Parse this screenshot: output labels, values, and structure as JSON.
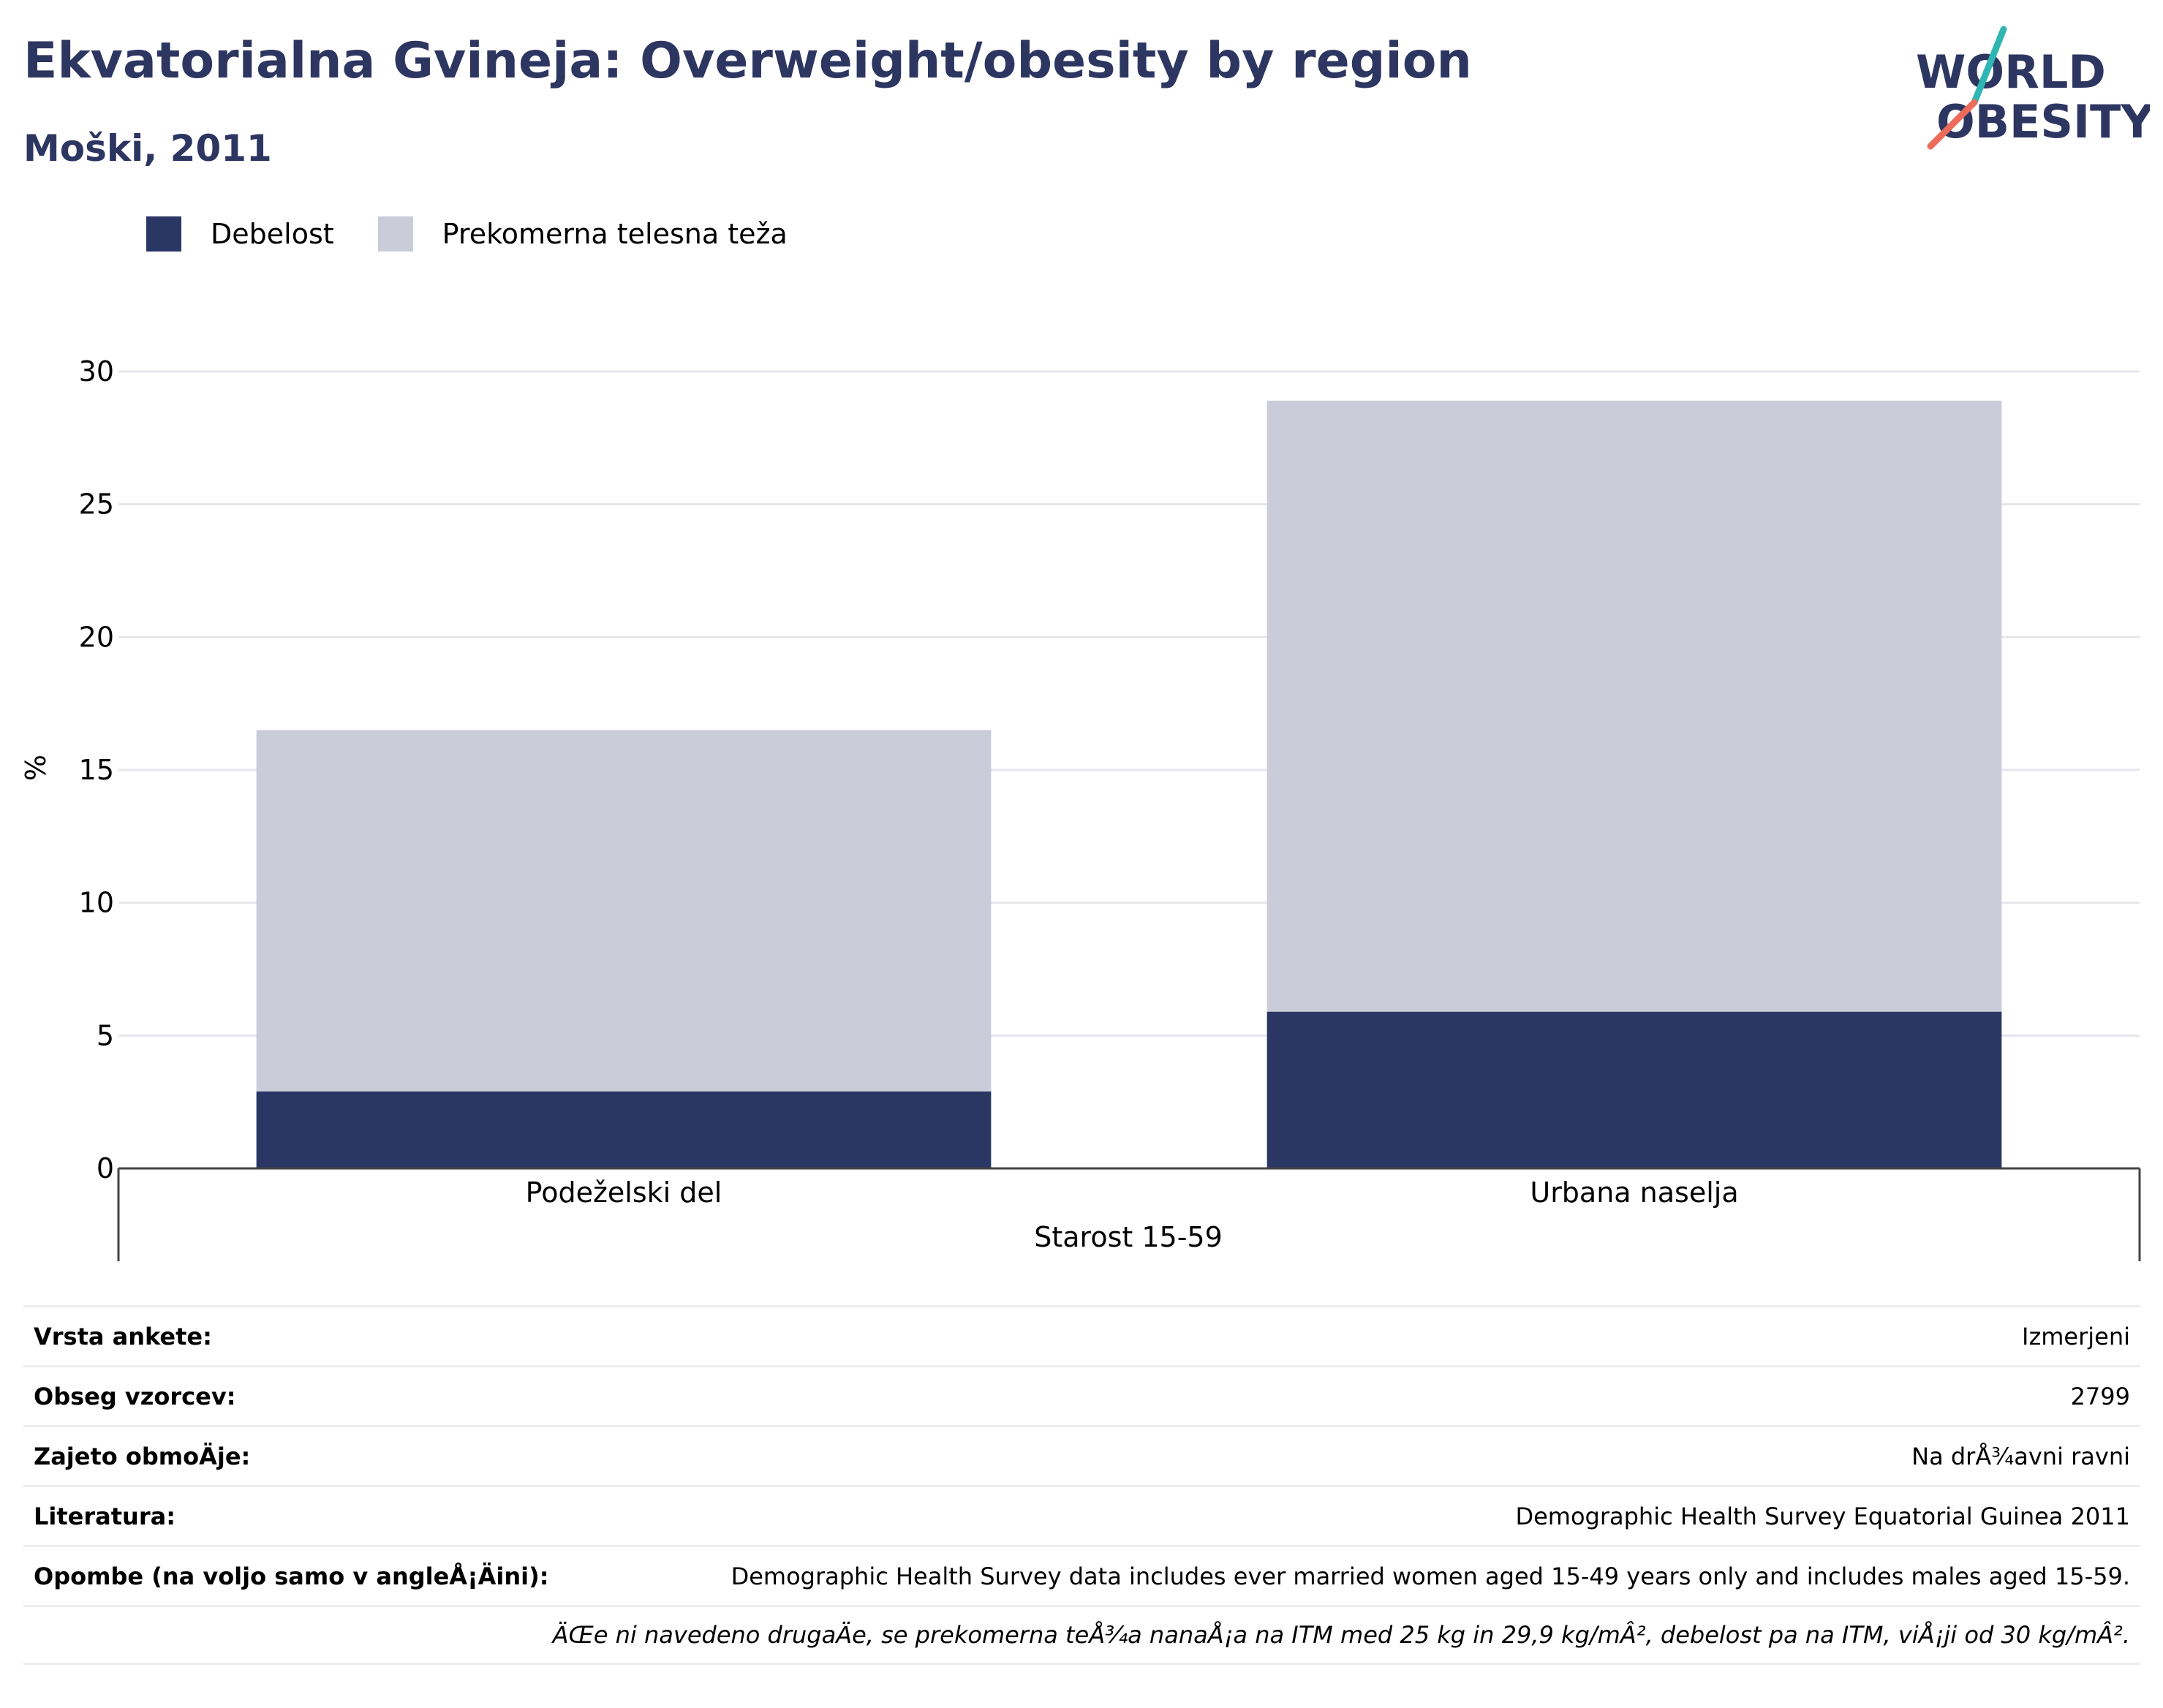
{
  "header": {
    "title": "Ekvatorialna Gvineja: Overweight/obesity by region",
    "subtitle": "Moški, 2011"
  },
  "logo": {
    "line1": "WORLD",
    "line2": "OBESITY"
  },
  "colors": {
    "debelost": "#2a3764",
    "prekomerna": "#cacdd9",
    "title": "#2d3561",
    "grid": "#e6e6ec",
    "axis": "#444444"
  },
  "chart_data": {
    "type": "bar",
    "stacked": true,
    "categories": [
      "Podeželski del",
      "Urbana naselja"
    ],
    "xlabel": "Starost 15-59",
    "ylabel": "%",
    "ylim": [
      0,
      30
    ],
    "yticks": [
      0,
      5,
      10,
      15,
      20,
      25,
      30
    ],
    "grid": true,
    "legend_position": "top-left",
    "series": [
      {
        "name": "Debelost",
        "values": [
          2.9,
          5.9
        ]
      },
      {
        "name": "Prekomerna telesna teža",
        "values": [
          13.6,
          23.0
        ]
      }
    ]
  },
  "info_table": {
    "rows": [
      {
        "label": "Vrsta ankete:",
        "value": "Izmerjeni"
      },
      {
        "label": "Obseg vzorcev:",
        "value": "2799"
      },
      {
        "label": "Zajeto obmoÄje:",
        "value": "Na drÅ¾avni ravni"
      },
      {
        "label": "Literatura:",
        "value": "Demographic Health Survey Equatorial Guinea 2011"
      },
      {
        "label": "Opombe (na voljo samo v angleÅ¡Äini):",
        "value": "Demographic Health Survey data includes ever married women aged 15-49 years only and includes males aged 15-59."
      }
    ],
    "footnote": "ÄŒe ni navedeno drugaÄe, se prekomerna teÅ¾a nanaÅ¡a na ITM med 25 kg in 29,9 kg/mÂ², debelost pa na ITM, viÅ¡ji od 30 kg/mÂ²."
  }
}
